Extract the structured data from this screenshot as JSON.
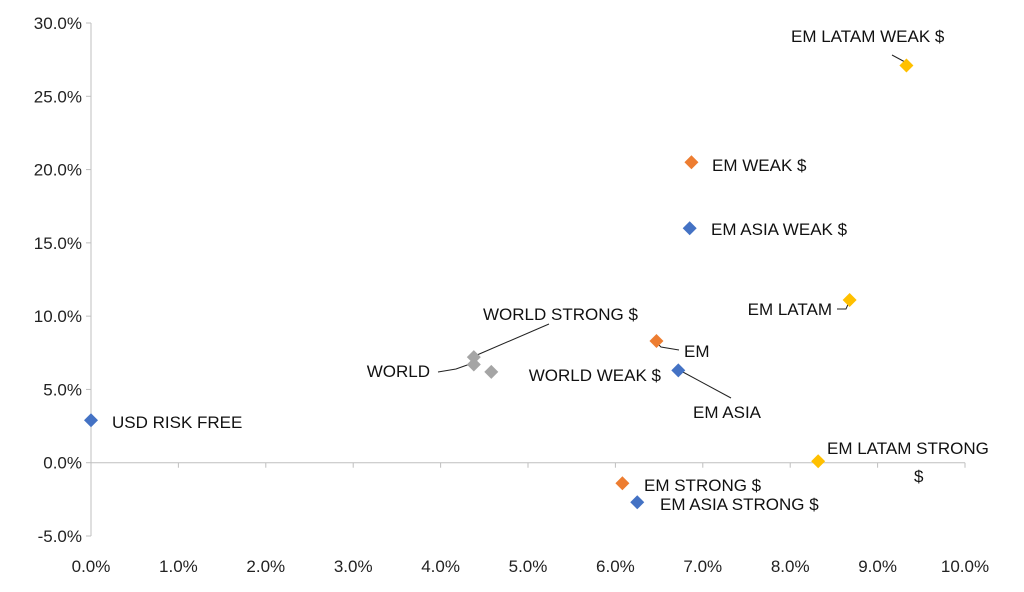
{
  "chart_data": {
    "type": "scatter",
    "title": "",
    "xlabel": "",
    "ylabel": "",
    "xlim": [
      0,
      10
    ],
    "ylim": [
      -5,
      30
    ],
    "x_ticks": [
      0,
      1,
      2,
      3,
      4,
      5,
      6,
      7,
      8,
      9,
      10
    ],
    "y_ticks": [
      -5,
      0,
      5,
      10,
      15,
      20,
      25,
      30
    ],
    "x_tick_labels": [
      "0.0%",
      "1.0%",
      "2.0%",
      "3.0%",
      "4.0%",
      "5.0%",
      "6.0%",
      "7.0%",
      "8.0%",
      "9.0%",
      "10.0%"
    ],
    "y_tick_labels": [
      "-5.0%",
      "0.0%",
      "5.0%",
      "10.0%",
      "15.0%",
      "20.0%",
      "25.0%",
      "30.0%"
    ],
    "grid": false,
    "legend": "none",
    "colors": {
      "blue": "#4472c4",
      "orange": "#ed7d31",
      "gray": "#a5a5a5",
      "yellow": "#ffc000"
    },
    "points": [
      {
        "label": "USD RISK FREE",
        "x": 0.0,
        "y": 2.9,
        "color": "blue"
      },
      {
        "label": "WORLD",
        "x": 4.38,
        "y": 6.7,
        "color": "gray"
      },
      {
        "label": "WORLD STRONG $",
        "x": 4.38,
        "y": 7.2,
        "color": "gray"
      },
      {
        "label": "WORLD WEAK $",
        "x": 4.58,
        "y": 6.2,
        "color": "gray"
      },
      {
        "label": "EM",
        "x": 6.47,
        "y": 8.3,
        "color": "orange"
      },
      {
        "label": "EM WEAK $",
        "x": 6.87,
        "y": 20.5,
        "color": "orange"
      },
      {
        "label": "EM STRONG $",
        "x": 6.08,
        "y": -1.4,
        "color": "orange"
      },
      {
        "label": "EM ASIA",
        "x": 6.72,
        "y": 6.3,
        "color": "blue"
      },
      {
        "label": "EM ASIA WEAK $",
        "x": 6.85,
        "y": 16.0,
        "color": "blue"
      },
      {
        "label": "EM ASIA STRONG $",
        "x": 6.25,
        "y": -2.7,
        "color": "blue"
      },
      {
        "label": "EM LATAM",
        "x": 8.68,
        "y": 11.1,
        "color": "yellow"
      },
      {
        "label": "EM LATAM WEAK $",
        "x": 9.33,
        "y": 27.1,
        "color": "yellow"
      },
      {
        "label": "EM LATAM STRONG $",
        "x": 8.32,
        "y": 0.1,
        "color": "yellow"
      }
    ]
  }
}
